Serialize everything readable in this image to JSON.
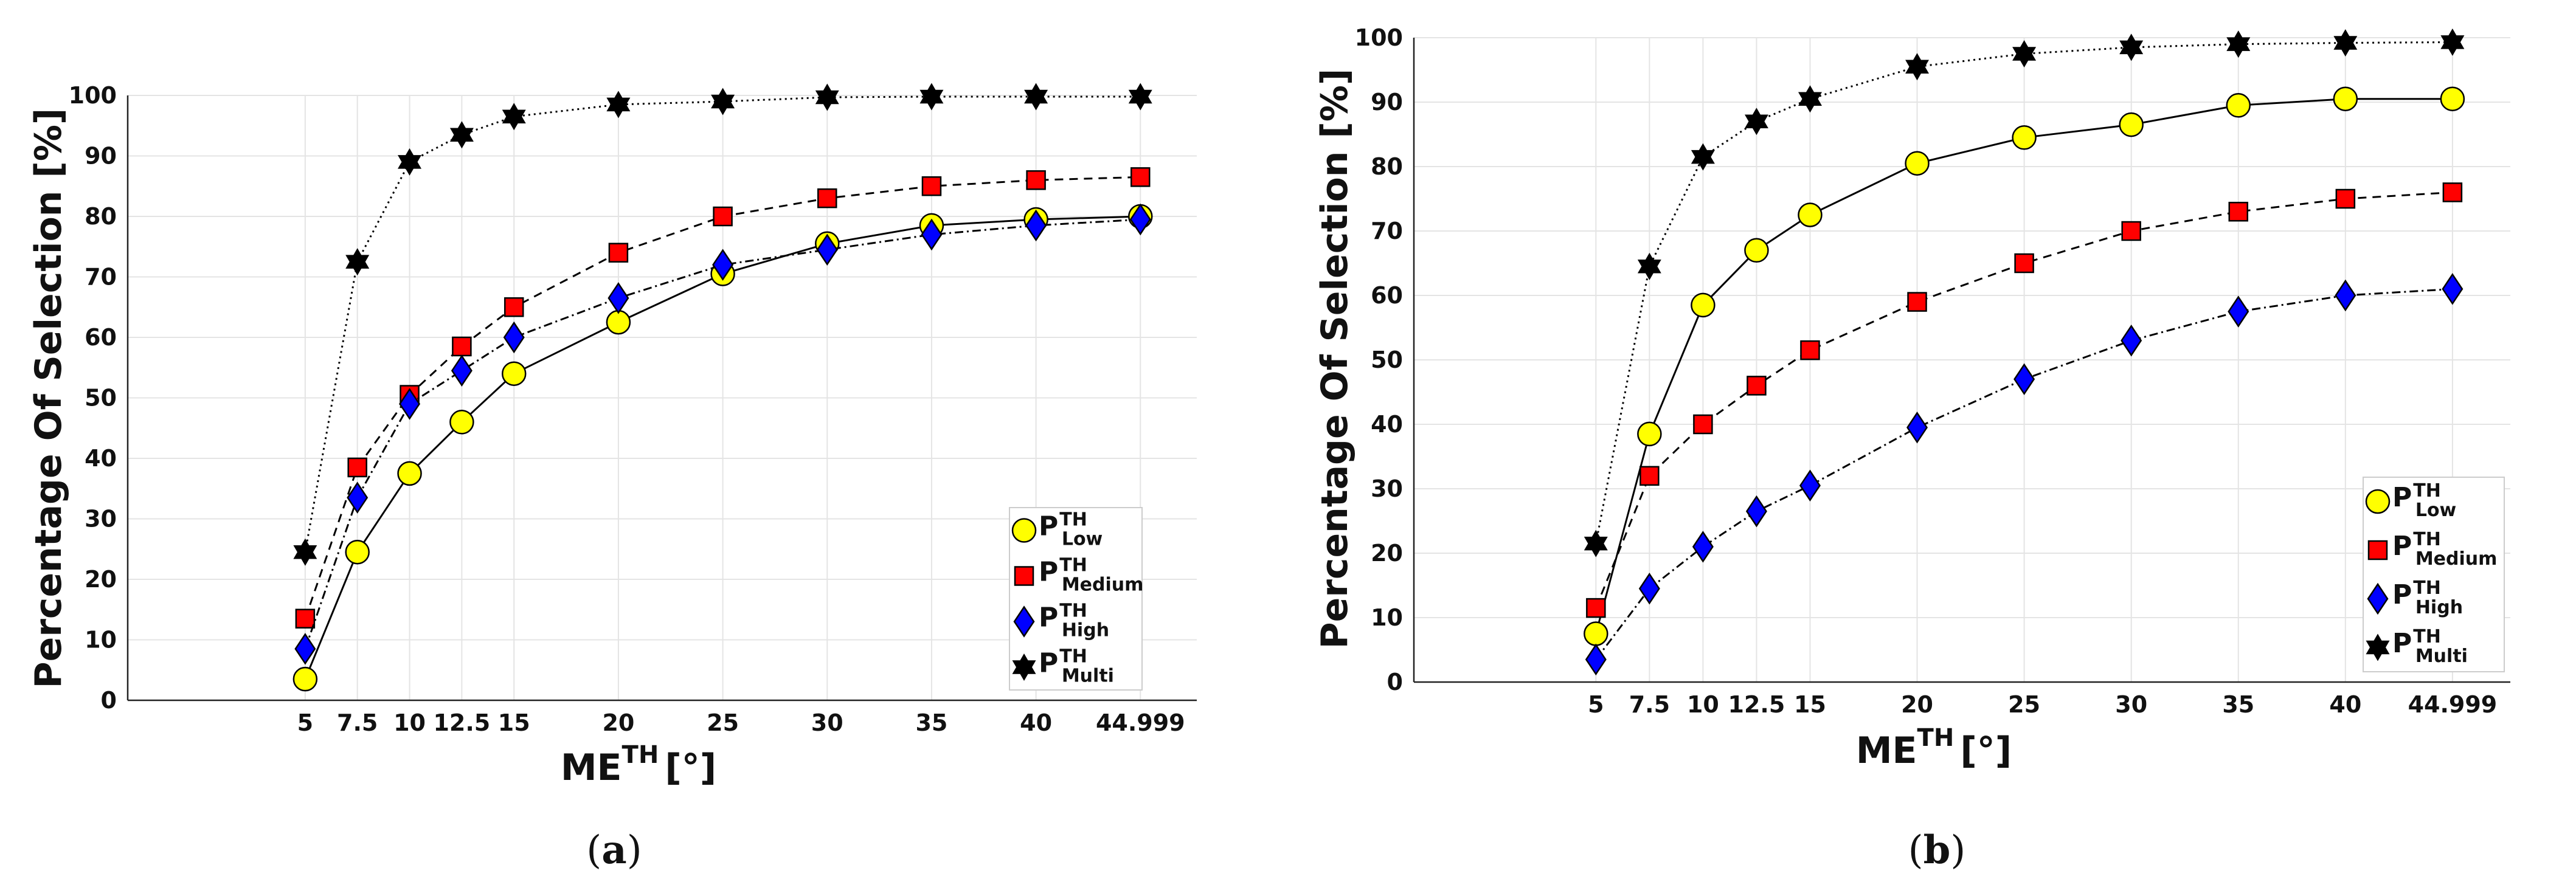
{
  "chart_data": [
    {
      "type": "line",
      "panel_label": "a",
      "ylabel": "Percentage Of Selection [%]",
      "xlabel": {
        "base": "ME",
        "sup": "TH",
        "unit": "[°]"
      },
      "ylim": [
        0,
        100
      ],
      "yticks": [
        0,
        10,
        20,
        30,
        40,
        50,
        60,
        70,
        80,
        90,
        100
      ],
      "grid": true,
      "legend_position": "bottom-right",
      "categories": [
        "5",
        "7.5",
        "10",
        "12.5",
        "15",
        "20",
        "25",
        "30",
        "35",
        "40",
        "44.999"
      ],
      "x": [
        5,
        7.5,
        10,
        12.5,
        15,
        20,
        25,
        30,
        35,
        40,
        44.999
      ],
      "series": [
        {
          "name": "P",
          "sup": "TH",
          "sub": "Low",
          "marker": "circle",
          "color": "#ffff00",
          "line": "solid",
          "values": [
            3.5,
            24.5,
            37.5,
            46,
            54,
            62.5,
            70.5,
            75.5,
            78.5,
            79.5,
            80
          ]
        },
        {
          "name": "P",
          "sup": "TH",
          "sub": "Medium",
          "marker": "square",
          "color": "#ff0000",
          "line": "dashed",
          "values": [
            13.5,
            38.5,
            50.5,
            58.5,
            65,
            74,
            80,
            83,
            85,
            86,
            86.5
          ]
        },
        {
          "name": "P",
          "sup": "TH",
          "sub": "High",
          "marker": "diamond",
          "color": "#0000ff",
          "line": "dashdot",
          "values": [
            8.5,
            33.5,
            49,
            54.5,
            60,
            66.5,
            72,
            74.5,
            77,
            78.5,
            79.5
          ]
        },
        {
          "name": "P",
          "sup": "TH",
          "sub": "Multi",
          "marker": "hexagram",
          "color": "#000000",
          "line": "dotted",
          "values": [
            24.5,
            72.5,
            89,
            93.5,
            96.5,
            98.5,
            99,
            99.7,
            99.8,
            99.8,
            99.8
          ]
        }
      ]
    },
    {
      "type": "line",
      "panel_label": "b",
      "ylabel": "Percentage Of Selection [%]",
      "xlabel": {
        "base": "ME",
        "sup": "TH",
        "unit": "[°]"
      },
      "ylim": [
        0,
        100
      ],
      "yticks": [
        0,
        10,
        20,
        30,
        40,
        50,
        60,
        70,
        80,
        90,
        100
      ],
      "grid": true,
      "legend_position": "bottom-right",
      "categories": [
        "5",
        "7.5",
        "10",
        "12.5",
        "15",
        "20",
        "25",
        "30",
        "35",
        "40",
        "44.999"
      ],
      "x": [
        5,
        7.5,
        10,
        12.5,
        15,
        20,
        25,
        30,
        35,
        40,
        44.999
      ],
      "series": [
        {
          "name": "P",
          "sup": "TH",
          "sub": "Low",
          "marker": "circle",
          "color": "#ffff00",
          "line": "solid",
          "values": [
            7.5,
            38.5,
            58.5,
            67,
            72.5,
            80.5,
            84.5,
            86.5,
            89.5,
            90.5,
            90.5
          ]
        },
        {
          "name": "P",
          "sup": "TH",
          "sub": "Medium",
          "marker": "square",
          "color": "#ff0000",
          "line": "dashed",
          "values": [
            11.5,
            32,
            40,
            46,
            51.5,
            59,
            65,
            70,
            73,
            75,
            76
          ]
        },
        {
          "name": "P",
          "sup": "TH",
          "sub": "High",
          "marker": "diamond",
          "color": "#0000ff",
          "line": "dashdot",
          "values": [
            3.5,
            14.5,
            21,
            26.5,
            30.5,
            39.5,
            47,
            53,
            57.5,
            60,
            61
          ]
        },
        {
          "name": "P",
          "sup": "TH",
          "sub": "Multi",
          "marker": "hexagram",
          "color": "#000000",
          "line": "dotted",
          "values": [
            21.5,
            64.5,
            81.5,
            87,
            90.5,
            95.5,
            97.5,
            98.5,
            99,
            99.2,
            99.3
          ]
        }
      ]
    }
  ]
}
